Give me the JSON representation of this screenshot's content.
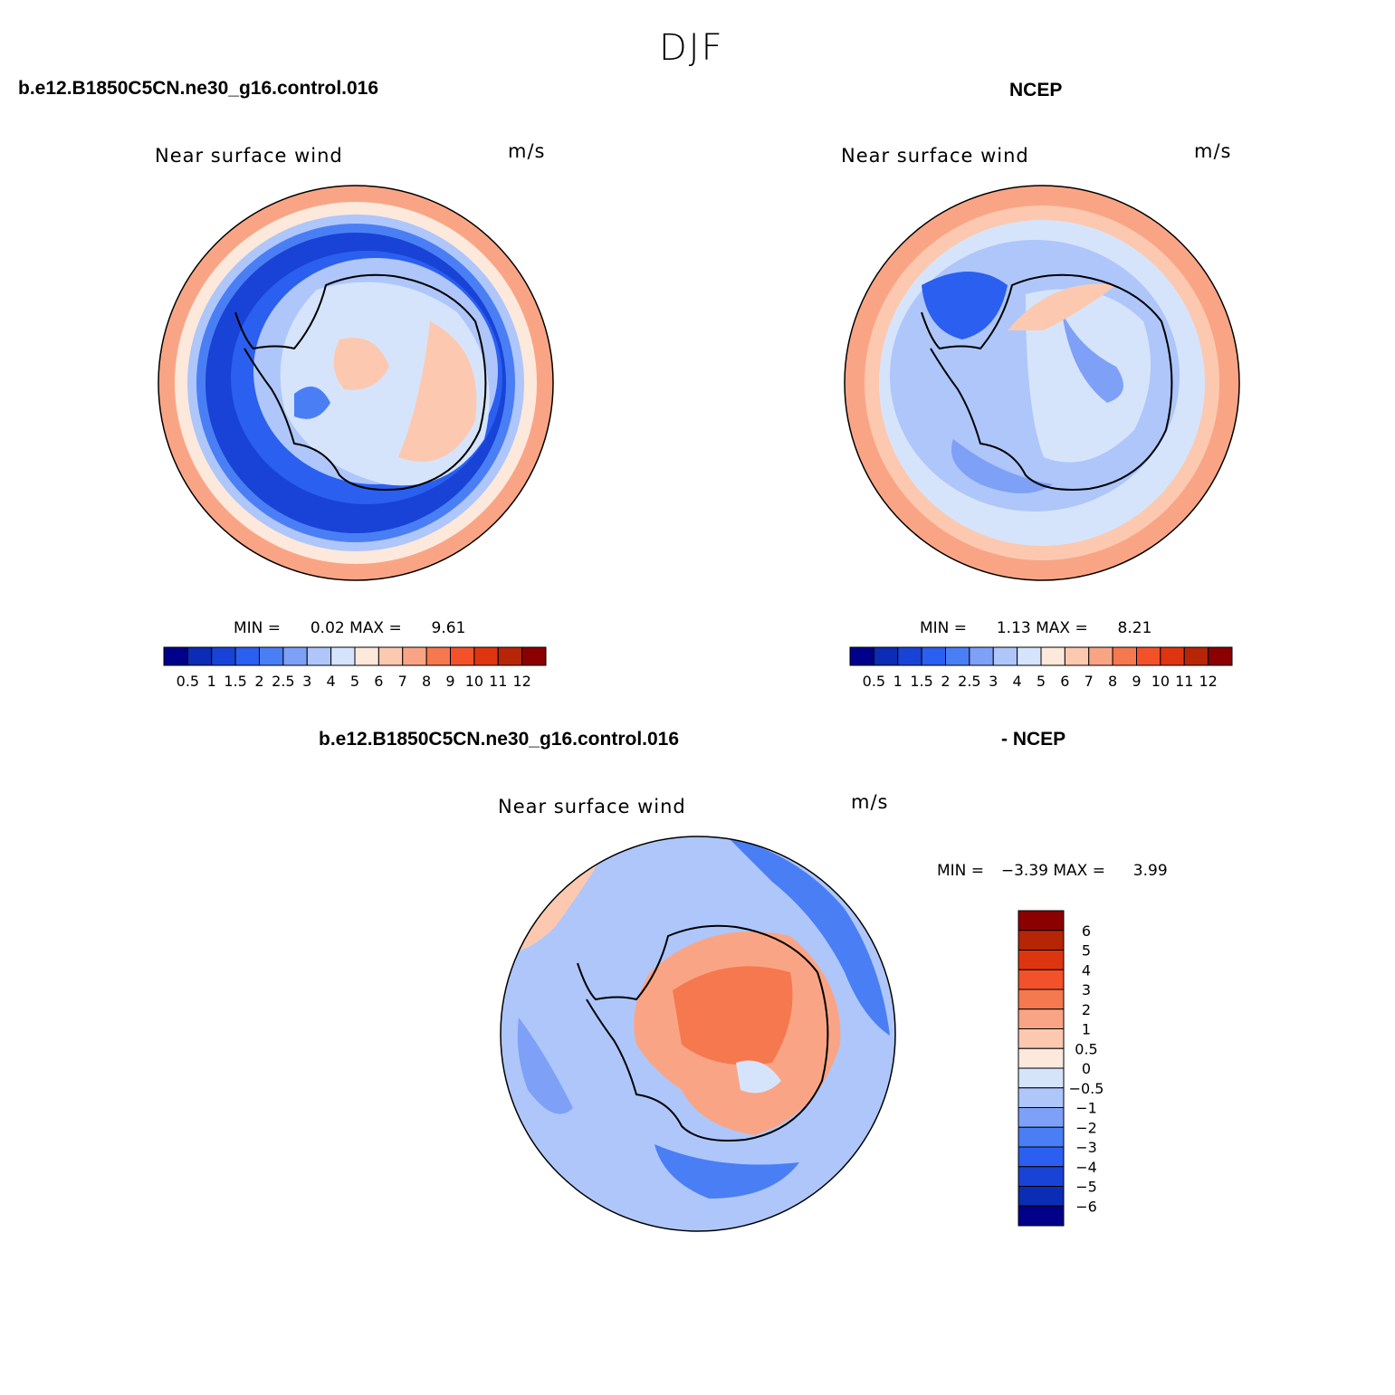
{
  "figure_title": "DJF",
  "panels": [
    {
      "case_label": "b.e12.B1850C5CN.ne30_g16.control.016",
      "subtitle": "Near surface wind",
      "units": "m/s",
      "min_label": "MIN =",
      "min_value": "0.02",
      "max_label": "MAX =",
      "max_value": "9.61"
    },
    {
      "case_label": "NCEP",
      "subtitle": "Near surface wind",
      "units": "m/s",
      "min_label": "MIN =",
      "min_value": "1.13",
      "max_label": "MAX =",
      "max_value": "8.21"
    },
    {
      "case_label": "b.e12.B1850C5CN.ne30_g16.control.016",
      "case_label_suffix": "- NCEP",
      "subtitle": "Near surface wind",
      "units": "m/s",
      "min_label": "MIN =",
      "min_value": "−3.39",
      "max_label": "MAX =",
      "max_value": "3.99"
    }
  ],
  "colorbar_abs": {
    "colors": [
      "#00008b",
      "#0b2cb5",
      "#1843d6",
      "#2a5ff0",
      "#4a7ef5",
      "#7ea0f7",
      "#aec6fa",
      "#d6e4fb",
      "#fde8dc",
      "#fcc9b0",
      "#f9a585",
      "#f6784f",
      "#f2512a",
      "#dd3510",
      "#b52506",
      "#8b0000"
    ],
    "ticks": [
      "0.5",
      "1",
      "1.5",
      "2",
      "2.5",
      "3",
      "4",
      "5",
      "6",
      "7",
      "8",
      "9",
      "10",
      "11",
      "12"
    ]
  },
  "colorbar_diff": {
    "colors_bottom_to_top": [
      "#00008b",
      "#0b2cb5",
      "#1843d6",
      "#2a5ff0",
      "#4a7ef5",
      "#7ea0f7",
      "#aec6fa",
      "#d6e4fb",
      "#fde8dc",
      "#fcc9b0",
      "#f9a585",
      "#f6784f",
      "#f2512a",
      "#dd3510",
      "#b52506",
      "#8b0000"
    ],
    "ticks_top_to_bottom": [
      "6",
      "5",
      "4",
      "3",
      "2",
      "1",
      "0.5",
      "0",
      "−0.5",
      "−1",
      "−2",
      "−3",
      "−4",
      "−5",
      "−6"
    ]
  }
}
